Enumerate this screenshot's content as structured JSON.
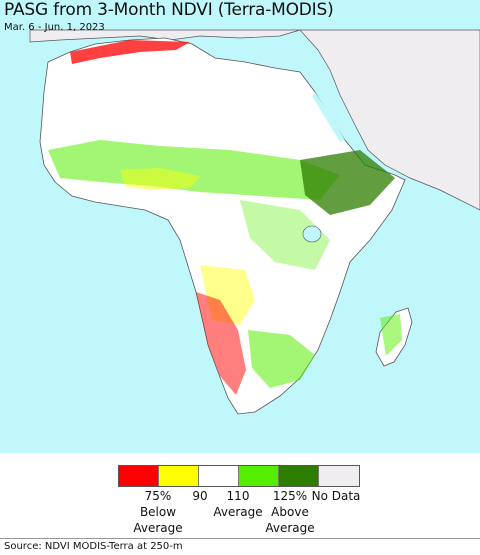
{
  "header": {
    "title": "PASG from 3-Month NDVI (Terra-MODIS)",
    "date_range": "Mar. 6 - Jun. 1, 2023"
  },
  "legend": {
    "swatches": [
      {
        "name": "below-75",
        "color": "#ff0000"
      },
      {
        "name": "75-90",
        "color": "#ffff00"
      },
      {
        "name": "90-110",
        "color": "#ffffff"
      },
      {
        "name": "110-125",
        "color": "#55ee00"
      },
      {
        "name": "125-plus",
        "color": "#2d7d00"
      },
      {
        "name": "no-data",
        "color": "#f0edf0"
      }
    ],
    "labels": [
      {
        "name": "legend-label-75",
        "text": "75%\nBelow\nAverage"
      },
      {
        "name": "legend-label-90",
        "text": "90"
      },
      {
        "name": "legend-label-110",
        "text": "110\nAverage"
      },
      {
        "name": "legend-label-125",
        "text": "125%\nAbove\nAverage"
      },
      {
        "name": "legend-label-no-data",
        "text": "No Data"
      }
    ]
  },
  "footer": {
    "source": "Source: NDVI MODIS-Terra at 250-m"
  },
  "colors": {
    "ocean": "#bff7fb",
    "land": "#ffffff",
    "no_data_land": "#f0edf0",
    "border": "#555555"
  }
}
